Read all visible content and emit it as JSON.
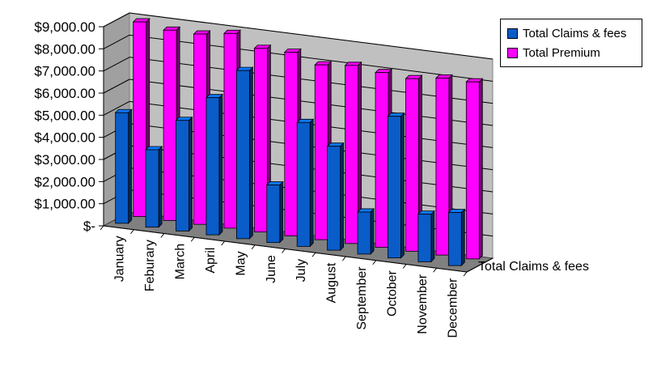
{
  "chart_data": {
    "type": "bar",
    "categories": [
      "January",
      "Feburary",
      "March",
      "April",
      "May",
      "June",
      "July",
      "August",
      "September",
      "October",
      "November",
      "December"
    ],
    "series": [
      {
        "name": "Total Claims & fees",
        "color": "#0a5cc8",
        "values": [
          5000,
          3500,
          5000,
          6200,
          7600,
          2600,
          5600,
          4700,
          1900,
          6400,
          2150,
          2400
        ]
      },
      {
        "name": "Total Premium",
        "color": "#ff00ff",
        "values": [
          8800,
          8600,
          8600,
          8800,
          8300,
          8300,
          7900,
          8050,
          7900,
          7800,
          8000,
          8000
        ]
      }
    ],
    "ytick_labels": [
      "$-",
      "$1,000.00",
      "$2,000.00",
      "$3,000.00",
      "$4,000.00",
      "$5,000.00",
      "$6,000.00",
      "$7,000.00",
      "$8,000.00",
      "$9,000.00"
    ],
    "ylim": [
      0,
      9000
    ],
    "depth_axis_label": "Total Claims & fees",
    "legend_position": "right",
    "grid": true,
    "style": "3d-column"
  },
  "legend": {
    "items": [
      {
        "label": "Total Claims & fees",
        "color": "#0a5cc8"
      },
      {
        "label": "Total Premium",
        "color": "#ff00ff"
      }
    ]
  }
}
